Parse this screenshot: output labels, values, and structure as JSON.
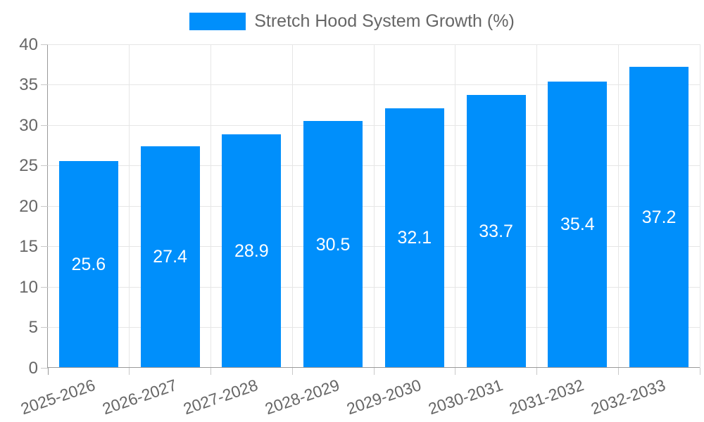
{
  "chart_data": {
    "type": "bar",
    "title": "Stretch Hood System Growth (%)",
    "legend": {
      "position": "top",
      "label": "Stretch Hood System Growth (%)"
    },
    "categories": [
      "2025-2026",
      "2026-2027",
      "2027-2028",
      "2028-2029",
      "2029-2030",
      "2030-2031",
      "2031-2032",
      "2032-2033"
    ],
    "series": [
      {
        "name": "Stretch Hood System Growth (%)",
        "values": [
          25.6,
          27.4,
          28.9,
          30.5,
          32.1,
          33.7,
          35.4,
          37.2
        ]
      }
    ],
    "value_labels": [
      "25.6",
      "27.4",
      "28.9",
      "30.5",
      "32.1",
      "33.7",
      "35.4",
      "37.2"
    ],
    "xlabel": "",
    "ylabel": "",
    "ylim": [
      0,
      40
    ],
    "y_ticks": [
      0,
      5,
      10,
      15,
      20,
      25,
      30,
      35,
      40
    ],
    "grid": true,
    "x_tick_label_rotation_deg": -19,
    "colors": {
      "bar": "#008FFB",
      "value_label": "#ffffff",
      "axis_text": "#666666",
      "grid": "#e6e6e6",
      "axis_line": "#999999",
      "tick": "#c9c9c9",
      "background": "#ffffff"
    }
  }
}
